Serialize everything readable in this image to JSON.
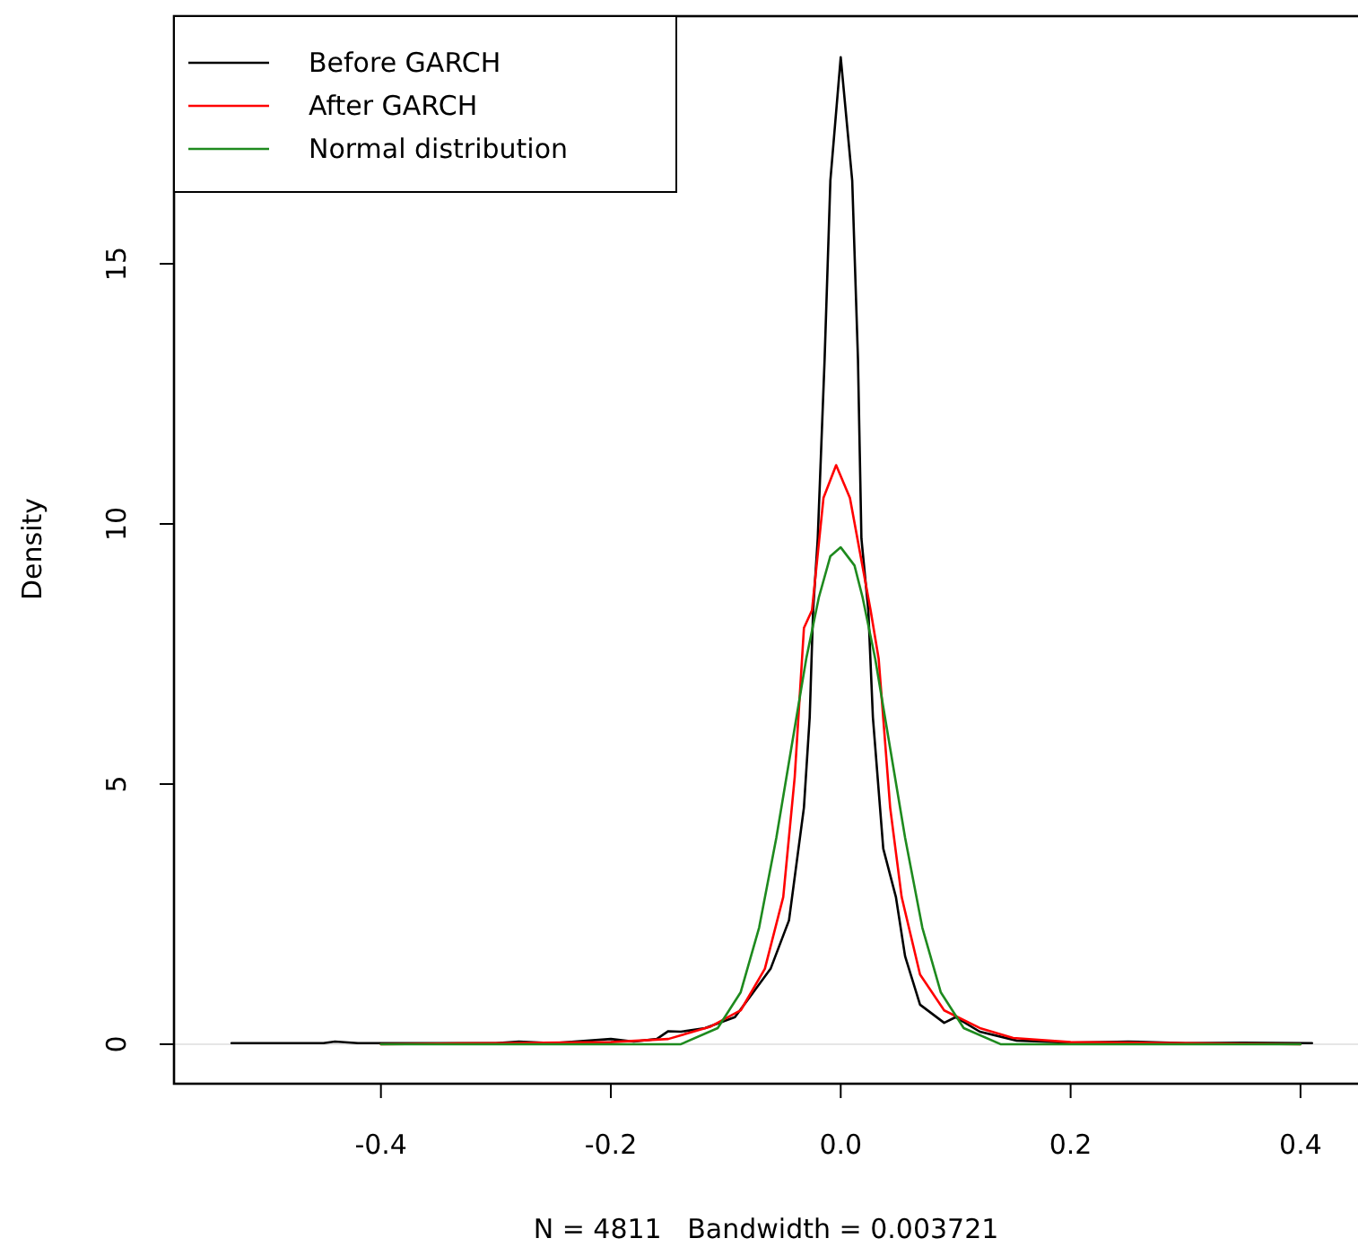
{
  "chart_data": {
    "type": "line",
    "xlabel": "N = 4811   Bandwidth = 0.003721",
    "ylabel": "Density",
    "xlim": [
      -0.58,
      0.45
    ],
    "ylim": [
      -0.76,
      19.76
    ],
    "xticks": [
      -0.4,
      -0.2,
      {
        "value": 0,
        "label": "0.0"
      },
      0.2,
      0.4
    ],
    "yticks": [
      0,
      5,
      10,
      15
    ],
    "grid": false,
    "legend": "top left",
    "line_style": "solid",
    "marker": "none",
    "ref_lines": [
      {
        "axis": "y",
        "value": 0,
        "color": "#e6e6e6"
      }
    ],
    "series": [
      {
        "name": "Before GARCH",
        "color": "#000000",
        "x": [
          -0.53,
          -0.45,
          -0.44,
          -0.42,
          -0.3,
          -0.28,
          -0.25,
          -0.2,
          -0.18,
          -0.16,
          -0.15,
          -0.139,
          -0.118,
          -0.092,
          -0.076,
          -0.061,
          -0.045,
          -0.032,
          -0.027,
          -0.024,
          -0.02,
          -0.014,
          -0.009,
          0,
          0.01,
          0.015,
          0.018,
          0.024,
          0.028,
          0.037,
          0.048,
          0.056,
          0.069,
          0.09,
          0.1,
          0.121,
          0.153,
          0.2,
          0.25,
          0.3,
          0.35,
          0.41
        ],
        "values": [
          0.02,
          0.02,
          0.05,
          0.02,
          0.02,
          0.05,
          0.02,
          0.1,
          0.05,
          0.1,
          0.25,
          0.24,
          0.31,
          0.52,
          1.0,
          1.45,
          2.38,
          4.55,
          6.28,
          8.34,
          9.72,
          13.17,
          16.6,
          18.97,
          16.6,
          13.17,
          9.72,
          8.34,
          6.28,
          3.76,
          2.83,
          1.69,
          0.76,
          0.41,
          0.52,
          0.24,
          0.07,
          0.03,
          0.05,
          0.02,
          0.03,
          0.02
        ]
      },
      {
        "name": "After GARCH",
        "color": "#ff0000",
        "x": [
          -0.4,
          -0.3,
          -0.2,
          -0.15,
          -0.113,
          -0.087,
          -0.066,
          -0.05,
          -0.04,
          -0.032,
          -0.025,
          -0.015,
          -0.004,
          0.008,
          0.026,
          0.033,
          0.043,
          0.053,
          0.069,
          0.09,
          0.121,
          0.15,
          0.2,
          0.3,
          0.4
        ],
        "values": [
          0.0,
          0.02,
          0.04,
          0.1,
          0.34,
          0.65,
          1.45,
          2.83,
          5.14,
          8.0,
          8.34,
          10.5,
          11.13,
          10.5,
          8.34,
          7.41,
          4.55,
          2.83,
          1.34,
          0.65,
          0.31,
          0.12,
          0.04,
          0.02,
          0.0
        ]
      },
      {
        "name": "Normal distribution",
        "color": "#1e8a1e",
        "x": [
          -0.4,
          -0.2,
          -0.139,
          -0.107,
          -0.087,
          -0.071,
          -0.056,
          -0.043,
          -0.03,
          -0.019,
          -0.009,
          0,
          0.012,
          0.019,
          0.03,
          0.043,
          0.056,
          0.071,
          0.087,
          0.107,
          0.139,
          0.2,
          0.4
        ],
        "values": [
          0.0,
          0.0,
          0.0,
          0.31,
          1.0,
          2.24,
          3.97,
          5.69,
          7.41,
          8.59,
          9.38,
          9.55,
          9.2,
          8.59,
          7.41,
          5.69,
          3.97,
          2.24,
          1.0,
          0.31,
          0.0,
          0.0,
          0.0
        ]
      }
    ]
  }
}
